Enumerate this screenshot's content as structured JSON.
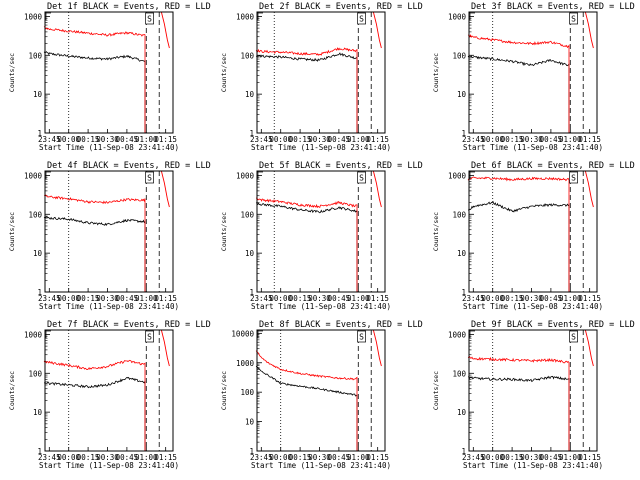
{
  "figure": {
    "type": "time-series grid",
    "panel_count": 9,
    "layout": "3x3",
    "background_color": "#ffffff",
    "series_colors": {
      "events": "#000000",
      "lld": "#ff0000"
    },
    "marker_labels": [
      "S"
    ]
  },
  "chart_data": [
    {
      "type": "line",
      "title": "Det 1f BLACK = Events, RED = LLD",
      "xlabel": "Start Time (11-Sep-08 23:41:40)",
      "ylabel": "Counts/sec",
      "x_tick_labels": [
        "23:45",
        "00:00",
        "00:15",
        "00:30",
        "00:45",
        "01:00",
        "01:15"
      ],
      "y_tick_labels": [
        "1",
        "10",
        "100",
        "1000"
      ],
      "yscale": "log",
      "ylim": [
        1,
        1300
      ],
      "x": [
        "23:41",
        "23:45",
        "00:00",
        "00:15",
        "00:30",
        "00:45",
        "00:58",
        "00:59"
      ],
      "series": [
        {
          "color": "#000000",
          "values": [
            120,
            110,
            95,
            85,
            80,
            95,
            70,
            70
          ]
        },
        {
          "color": "#ff0000",
          "values": [
            520,
            470,
            420,
            370,
            330,
            380,
            320,
            350
          ]
        }
      ],
      "dotted_line_time": "00:00",
      "dashed_line_times": [
        "01:00",
        "01:10"
      ],
      "spike_time": "01:14",
      "event_marker": {
        "label": "S",
        "time": "01:01"
      }
    },
    {
      "type": "line",
      "title": "Det 2f BLACK = Events, RED = LLD",
      "xlabel": "Start Time (11-Sep-08 23:41:40)",
      "ylabel": "Counts/sec",
      "x_tick_labels": [
        "23:45",
        "00:00",
        "00:15",
        "00:30",
        "00:45",
        "01:00",
        "01:15"
      ],
      "y_tick_labels": [
        "1",
        "10",
        "100",
        "1000"
      ],
      "yscale": "log",
      "ylim": [
        1,
        1300
      ],
      "x": [
        "23:41",
        "23:45",
        "00:00",
        "00:15",
        "00:30",
        "00:45",
        "00:58",
        "00:59"
      ],
      "series": [
        {
          "color": "#000000",
          "values": [
            100,
            95,
            90,
            80,
            75,
            110,
            85,
            90
          ]
        },
        {
          "color": "#ff0000",
          "values": [
            135,
            125,
            120,
            110,
            105,
            150,
            130,
            140
          ]
        }
      ],
      "dotted_line_time": "23:55",
      "dashed_line_times": [
        "01:00",
        "01:10"
      ],
      "spike_time": "01:14",
      "event_marker": {
        "label": "S",
        "time": "01:01"
      }
    },
    {
      "type": "line",
      "title": "Det 3f BLACK = Events, RED = LLD",
      "xlabel": "Start Time (11-Sep-08 23:41:40)",
      "ylabel": "Counts/sec",
      "x_tick_labels": [
        "23:45",
        "00:00",
        "00:15",
        "00:30",
        "00:45",
        "01:00",
        "01:15"
      ],
      "y_tick_labels": [
        "1",
        "10",
        "100",
        "1000"
      ],
      "yscale": "log",
      "ylim": [
        1,
        1300
      ],
      "x": [
        "23:41",
        "23:45",
        "00:00",
        "00:15",
        "00:30",
        "00:45",
        "00:58",
        "00:59"
      ],
      "series": [
        {
          "color": "#000000",
          "values": [
            95,
            90,
            80,
            70,
            55,
            75,
            55,
            60
          ]
        },
        {
          "color": "#ff0000",
          "values": [
            330,
            290,
            250,
            215,
            200,
            220,
            170,
            190
          ]
        }
      ],
      "dotted_line_time": "00:00",
      "dashed_line_times": [
        "01:00",
        "01:10"
      ],
      "spike_time": "01:14",
      "event_marker": {
        "label": "S",
        "time": "01:01"
      }
    },
    {
      "type": "line",
      "title": "Det 4f BLACK = Events, RED = LLD",
      "xlabel": "Start Time (11-Sep-08 23:41:40)",
      "ylabel": "Counts/sec",
      "x_tick_labels": [
        "23:45",
        "00:00",
        "00:15",
        "00:30",
        "00:45",
        "01:00",
        "01:15"
      ],
      "y_tick_labels": [
        "1",
        "10",
        "100",
        "1000"
      ],
      "yscale": "log",
      "ylim": [
        1,
        1300
      ],
      "x": [
        "23:41",
        "23:45",
        "00:00",
        "00:15",
        "00:30",
        "00:45",
        "00:58",
        "00:59"
      ],
      "series": [
        {
          "color": "#000000",
          "values": [
            85,
            80,
            75,
            60,
            55,
            70,
            65,
            65
          ]
        },
        {
          "color": "#ff0000",
          "values": [
            300,
            280,
            250,
            210,
            200,
            240,
            230,
            240
          ]
        }
      ],
      "dotted_line_time": "00:00",
      "dashed_line_times": [
        "01:00",
        "01:10"
      ],
      "spike_time": "01:14",
      "event_marker": {
        "label": "S",
        "time": "01:01"
      }
    },
    {
      "type": "line",
      "title": "Det 5f BLACK = Events, RED = LLD",
      "xlabel": "Start Time (11-Sep-08 23:41:40)",
      "ylabel": "Counts/sec",
      "x_tick_labels": [
        "23:45",
        "00:00",
        "00:15",
        "00:30",
        "00:45",
        "01:00",
        "01:15"
      ],
      "y_tick_labels": [
        "1",
        "10",
        "100",
        "1000"
      ],
      "yscale": "log",
      "ylim": [
        1,
        1300
      ],
      "x": [
        "23:41",
        "23:45",
        "00:00",
        "00:15",
        "00:30",
        "00:45",
        "00:58",
        "00:59"
      ],
      "series": [
        {
          "color": "#000000",
          "values": [
            200,
            180,
            160,
            130,
            115,
            150,
            120,
            125
          ]
        },
        {
          "color": "#ff0000",
          "values": [
            260,
            235,
            210,
            175,
            160,
            200,
            160,
            170
          ]
        }
      ],
      "dotted_line_time": "23:55",
      "dashed_line_times": [
        "01:00",
        "01:10"
      ],
      "spike_time": "01:14",
      "event_marker": {
        "label": "S",
        "time": "01:01"
      }
    },
    {
      "type": "line",
      "title": "Det 6f BLACK = Events, RED = LLD",
      "xlabel": "Start Time (11-Sep-08 23:41:40)",
      "ylabel": "Counts/sec",
      "x_tick_labels": [
        "23:45",
        "00:00",
        "00:15",
        "00:30",
        "00:45",
        "01:00",
        "01:15"
      ],
      "y_tick_labels": [
        "1",
        "10",
        "100",
        "1000"
      ],
      "yscale": "log",
      "ylim": [
        1,
        1300
      ],
      "x": [
        "23:41",
        "23:45",
        "00:00",
        "00:15",
        "00:30",
        "00:45",
        "00:58",
        "00:59"
      ],
      "series": [
        {
          "color": "#000000",
          "values": [
            120,
            160,
            200,
            120,
            160,
            175,
            170,
            175
          ]
        },
        {
          "color": "#ff0000",
          "values": [
            800,
            850,
            850,
            780,
            830,
            830,
            780,
            800
          ]
        }
      ],
      "dotted_line_time": "00:00",
      "dashed_line_times": [
        "01:00",
        "01:10"
      ],
      "spike_time": "01:14",
      "event_marker": {
        "label": "S",
        "time": "01:01"
      }
    },
    {
      "type": "line",
      "title": "Det 7f BLACK = Events, RED = LLD",
      "xlabel": "Start Time (11-Sep-08 23:41:40)",
      "ylabel": "Counts/sec",
      "x_tick_labels": [
        "23:45",
        "00:00",
        "00:15",
        "00:30",
        "00:45",
        "01:00",
        "01:15"
      ],
      "y_tick_labels": [
        "1",
        "10",
        "100",
        "1000"
      ],
      "yscale": "log",
      "ylim": [
        1,
        1300
      ],
      "x": [
        "23:41",
        "23:45",
        "00:00",
        "00:15",
        "00:30",
        "00:45",
        "00:58",
        "00:59"
      ],
      "series": [
        {
          "color": "#000000",
          "values": [
            60,
            55,
            50,
            45,
            50,
            75,
            60,
            60
          ]
        },
        {
          "color": "#ff0000",
          "values": [
            200,
            190,
            160,
            130,
            150,
            210,
            170,
            180
          ]
        }
      ],
      "dotted_line_time": "00:00",
      "dashed_line_times": [
        "01:00",
        "01:10"
      ],
      "spike_time": "01:14",
      "event_marker": {
        "label": "S",
        "time": "01:01"
      }
    },
    {
      "type": "line",
      "title": "Det 8f BLACK = Events, RED = LLD",
      "xlabel": "Start Time (11-Sep-08 23:41:40)",
      "ylabel": "Counts/sec",
      "x_tick_labels": [
        "23:45",
        "00:00",
        "00:15",
        "00:30",
        "00:45",
        "01:00",
        "01:15"
      ],
      "y_tick_labels": [
        "1",
        "10",
        "100",
        "1000",
        "10000"
      ],
      "yscale": "log",
      "ylim": [
        1,
        13000
      ],
      "x": [
        "23:41",
        "23:45",
        "23:50",
        "00:00",
        "00:15",
        "00:30",
        "00:45",
        "00:58",
        "00:59"
      ],
      "series": [
        {
          "color": "#000000",
          "values": [
            800,
            500,
            380,
            200,
            160,
            130,
            100,
            80,
            80
          ]
        },
        {
          "color": "#ff0000",
          "values": [
            2500,
            1500,
            1000,
            600,
            430,
            350,
            300,
            280,
            300
          ]
        }
      ],
      "dotted_line_time": "00:00",
      "dashed_line_times": [
        "01:00",
        "01:10"
      ],
      "spike_time": "01:14",
      "event_marker": {
        "label": "S",
        "time": "01:01"
      }
    },
    {
      "type": "line",
      "title": "Det 9f BLACK = Events, RED = LLD",
      "xlabel": "Start Time (11-Sep-08 23:41:40)",
      "ylabel": "Counts/sec",
      "x_tick_labels": [
        "23:45",
        "00:00",
        "00:15",
        "00:30",
        "00:45",
        "01:00",
        "01:15"
      ],
      "y_tick_labels": [
        "1",
        "10",
        "100",
        "1000"
      ],
      "yscale": "log",
      "ylim": [
        1,
        1300
      ],
      "x": [
        "23:41",
        "23:45",
        "00:00",
        "00:15",
        "00:30",
        "00:45",
        "00:58",
        "00:59"
      ],
      "series": [
        {
          "color": "#000000",
          "values": [
            80,
            75,
            70,
            70,
            65,
            80,
            70,
            70
          ]
        },
        {
          "color": "#ff0000",
          "values": [
            260,
            240,
            230,
            220,
            210,
            220,
            190,
            200
          ]
        }
      ],
      "dotted_line_time": "00:00",
      "dashed_line_times": [
        "01:00",
        "01:10"
      ],
      "spike_time": "01:14",
      "event_marker": {
        "label": "S",
        "time": "01:01"
      }
    }
  ]
}
